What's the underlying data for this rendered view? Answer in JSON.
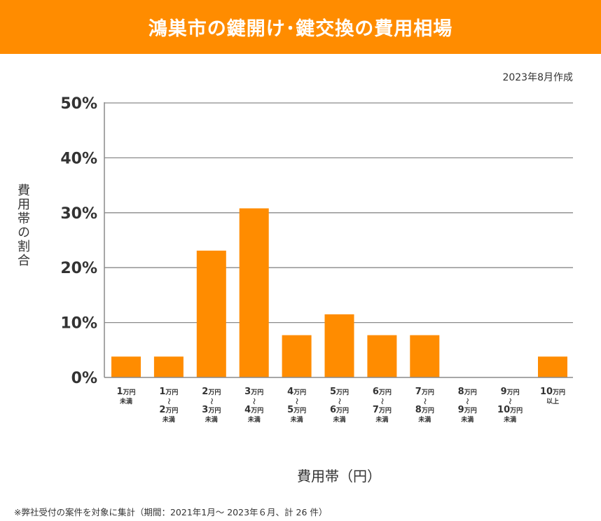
{
  "header": {
    "title": "鴻巣市の鍵開け･鍵交換の費用相場"
  },
  "created_date": "2023年8月作成",
  "footnote": "※弊社受付の案件を対象に集計（期間：2021年1月～ 2023年６月、計 26 件）",
  "colors": {
    "accent": "#ff8c00",
    "bar": "#ff8c00",
    "grid": "#8a8a8a",
    "text": "#333333"
  },
  "chart_data": {
    "type": "bar",
    "title": "鴻巣市の鍵開け･鍵交換の費用相場",
    "xlabel": "費用帯（円）",
    "ylabel": "費用帯の割合",
    "ylim": [
      0,
      50
    ],
    "yticks": [
      0,
      10,
      20,
      30,
      40,
      50
    ],
    "ytick_labels": [
      "0%",
      "10%",
      "20%",
      "30%",
      "40%",
      "50%"
    ],
    "grid": true,
    "legend": "none",
    "categories": [
      {
        "lines": [
          [
            "1",
            "万円"
          ],
          [
            "未満"
          ]
        ]
      },
      {
        "lines": [
          [
            "1",
            "万円"
          ],
          [
            "～"
          ],
          [
            "2",
            "万円"
          ],
          [
            "未満"
          ]
        ]
      },
      {
        "lines": [
          [
            "2",
            "万円"
          ],
          [
            "～"
          ],
          [
            "3",
            "万円"
          ],
          [
            "未満"
          ]
        ]
      },
      {
        "lines": [
          [
            "3",
            "万円"
          ],
          [
            "～"
          ],
          [
            "4",
            "万円"
          ],
          [
            "未満"
          ]
        ]
      },
      {
        "lines": [
          [
            "4",
            "万円"
          ],
          [
            "～"
          ],
          [
            "5",
            "万円"
          ],
          [
            "未満"
          ]
        ]
      },
      {
        "lines": [
          [
            "5",
            "万円"
          ],
          [
            "～"
          ],
          [
            "6",
            "万円"
          ],
          [
            "未満"
          ]
        ]
      },
      {
        "lines": [
          [
            "6",
            "万円"
          ],
          [
            "～"
          ],
          [
            "7",
            "万円"
          ],
          [
            "未満"
          ]
        ]
      },
      {
        "lines": [
          [
            "7",
            "万円"
          ],
          [
            "～"
          ],
          [
            "8",
            "万円"
          ],
          [
            "未満"
          ]
        ]
      },
      {
        "lines": [
          [
            "8",
            "万円"
          ],
          [
            "～"
          ],
          [
            "9",
            "万円"
          ],
          [
            "未満"
          ]
        ]
      },
      {
        "lines": [
          [
            "9",
            "万円"
          ],
          [
            "～"
          ],
          [
            "10",
            "万円"
          ],
          [
            "未満"
          ]
        ]
      },
      {
        "lines": [
          [
            "10",
            "万円"
          ],
          [
            "以上"
          ]
        ]
      }
    ],
    "category_names": [
      "1万円未満",
      "1万円～2万円未満",
      "2万円～3万円未満",
      "3万円～4万円未満",
      "4万円～5万円未満",
      "5万円～6万円未満",
      "6万円～7万円未満",
      "7万円～8万円未満",
      "8万円～9万円未満",
      "9万円～10万円未満",
      "10万円以上"
    ],
    "values": [
      3.8,
      3.8,
      23.1,
      30.8,
      7.7,
      11.5,
      7.7,
      7.7,
      0,
      0,
      3.8
    ]
  }
}
